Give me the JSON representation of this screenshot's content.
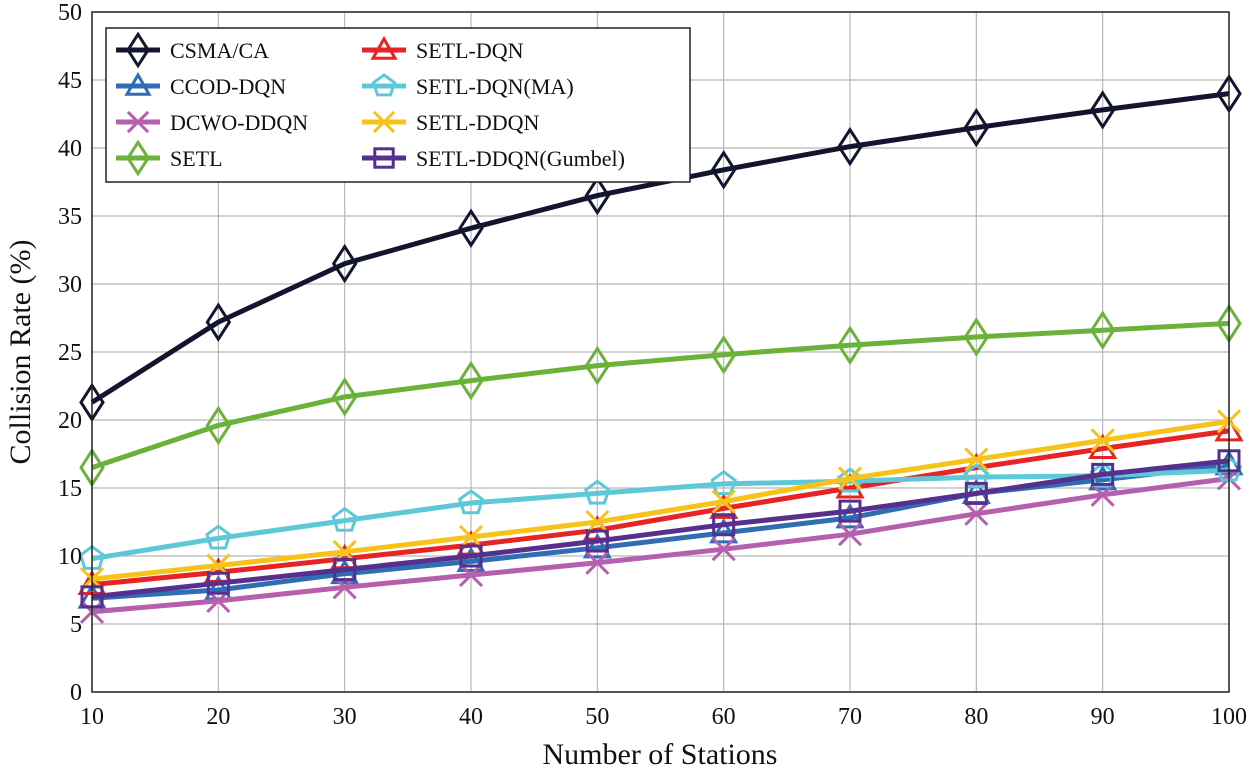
{
  "chart_data": {
    "type": "line",
    "title": "",
    "xlabel": "Number of Stations",
    "ylabel": "Collision Rate (%)",
    "x": [
      10,
      20,
      30,
      40,
      50,
      60,
      70,
      80,
      90,
      100
    ],
    "xlim": [
      10,
      100
    ],
    "ylim": [
      0,
      50
    ],
    "xticks": [
      "10",
      "20",
      "30",
      "40",
      "50",
      "60",
      "70",
      "80",
      "90",
      "100"
    ],
    "yticks": [
      "0",
      "5",
      "10",
      "15",
      "20",
      "25",
      "30",
      "35",
      "40",
      "45",
      "50"
    ],
    "grid": true,
    "legend_position": "top-left",
    "series": [
      {
        "name": "CSMA/CA",
        "color": "#13152f",
        "marker": "diamond",
        "values": [
          21.3,
          27.2,
          31.5,
          34.1,
          36.5,
          38.4,
          40.1,
          41.5,
          42.8,
          44.0
        ]
      },
      {
        "name": "CCOD-DQN",
        "color": "#2f6db5",
        "marker": "triangle",
        "values": [
          6.9,
          7.5,
          8.7,
          9.6,
          10.6,
          11.7,
          12.8,
          14.6,
          15.6,
          16.7
        ]
      },
      {
        "name": "DCWO-DDQN",
        "color": "#b55fae",
        "marker": "x",
        "values": [
          5.9,
          6.7,
          7.7,
          8.6,
          9.5,
          10.5,
          11.6,
          13.1,
          14.5,
          15.7
        ]
      },
      {
        "name": "SETL",
        "color": "#6ab23a",
        "marker": "diamond",
        "values": [
          16.5,
          19.6,
          21.7,
          22.9,
          24.0,
          24.8,
          25.5,
          26.1,
          26.6,
          27.1
        ]
      },
      {
        "name": "SETL-DQN",
        "color": "#e62325",
        "marker": "triangle",
        "values": [
          7.9,
          8.8,
          9.8,
          10.8,
          11.9,
          13.5,
          15.0,
          16.5,
          17.9,
          19.2
        ]
      },
      {
        "name": "SETL-DQN(MA)",
        "color": "#5ec8d8",
        "marker": "pentagon",
        "values": [
          9.8,
          11.3,
          12.6,
          13.9,
          14.6,
          15.3,
          15.5,
          15.8,
          15.9,
          16.3
        ]
      },
      {
        "name": "SETL-DDQN",
        "color": "#f7c31a",
        "marker": "x",
        "values": [
          8.3,
          9.3,
          10.3,
          11.4,
          12.5,
          14.0,
          15.7,
          17.1,
          18.5,
          19.9
        ]
      },
      {
        "name": "SETL-DDQN(Gumbel)",
        "color": "#56308e",
        "marker": "square",
        "values": [
          7.0,
          8.0,
          9.0,
          10.0,
          11.1,
          12.3,
          13.3,
          14.6,
          16.0,
          17.0
        ]
      }
    ]
  }
}
